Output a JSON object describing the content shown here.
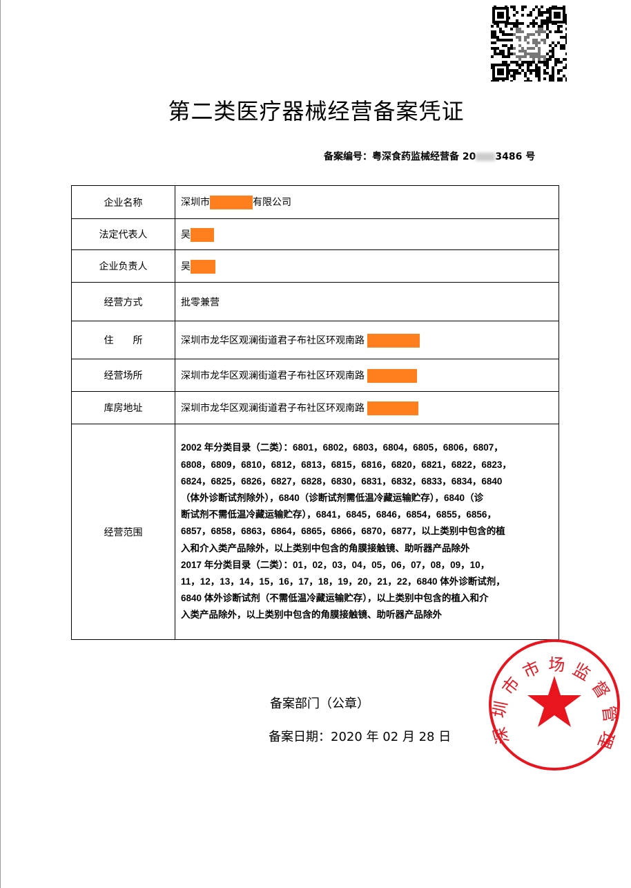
{
  "title": "第二类医疗器械经营备案凭证",
  "record_number": {
    "prefix": "备案编号：粤深食药监械经营备 20",
    "suffix": "3486 号"
  },
  "rows": [
    {
      "label": "企业名称",
      "value_before": "深圳市",
      "value_after": "有限公司"
    },
    {
      "label": "法定代表人",
      "value_before": "吴",
      "value_after": ""
    },
    {
      "label": "企业负责人",
      "value_before": "吴",
      "value_after": ""
    },
    {
      "label": "经营方式",
      "value_before": "批零兼营",
      "value_after": ""
    },
    {
      "label": "住　　所",
      "value_before": "深圳市龙华区观澜街道君子布社区环观南路",
      "value_after": ""
    },
    {
      "label": "经营场所",
      "value_before": "深圳市龙华区观澜街道君子布社区环观南路",
      "value_after": ""
    },
    {
      "label": "库房地址",
      "value_before": "深圳市龙华区观澜街道君子布社区环观南路",
      "value_after": ""
    }
  ],
  "scope": {
    "label": "经营范围",
    "lines": [
      "2002 年分类目录（二类）：6801，6802，6803，6804，6805，6806，6807，",
      "6808，6809，6810，6812，6813，6815，6816，6820，6821，6822，6823，",
      "6824，6825，6826，6827，6828，6830，6831，6832，6833，6834，6840",
      "（体外诊断试剂除外），6840（诊断试剂需低温冷藏运输贮存），6840（诊",
      "断试剂不需低温冷藏运输贮存），6841，6845，6846，6854，6855，6856，",
      "6857，6858，6863，6864，6865，6866，6870，6877，以上类别中包含的植",
      "入和介入类产品除外，以上类别中包含的角膜接触镜、助听器产品除外",
      "2017 年分类目录（二类）：01，02，03，04，05，06，07，08，09，10，",
      "11，12，13，14，15，16，17，18，19，20，21，22，6840 体外诊断试剂，",
      "6840 体外诊断试剂（不需低温冷藏运输贮存），以上类别中包含的植入和介",
      "入类产品除外，以上类别中包含的角膜接触镜、助听器产品除外"
    ]
  },
  "footer": {
    "department": "备案部门（公章）",
    "date": "备案日期：2020 年 02 月 28 日"
  },
  "stamp": {
    "text": "深圳市市场监督管理局",
    "color": "#e8141e"
  },
  "redaction_color": "#ff7f1e"
}
